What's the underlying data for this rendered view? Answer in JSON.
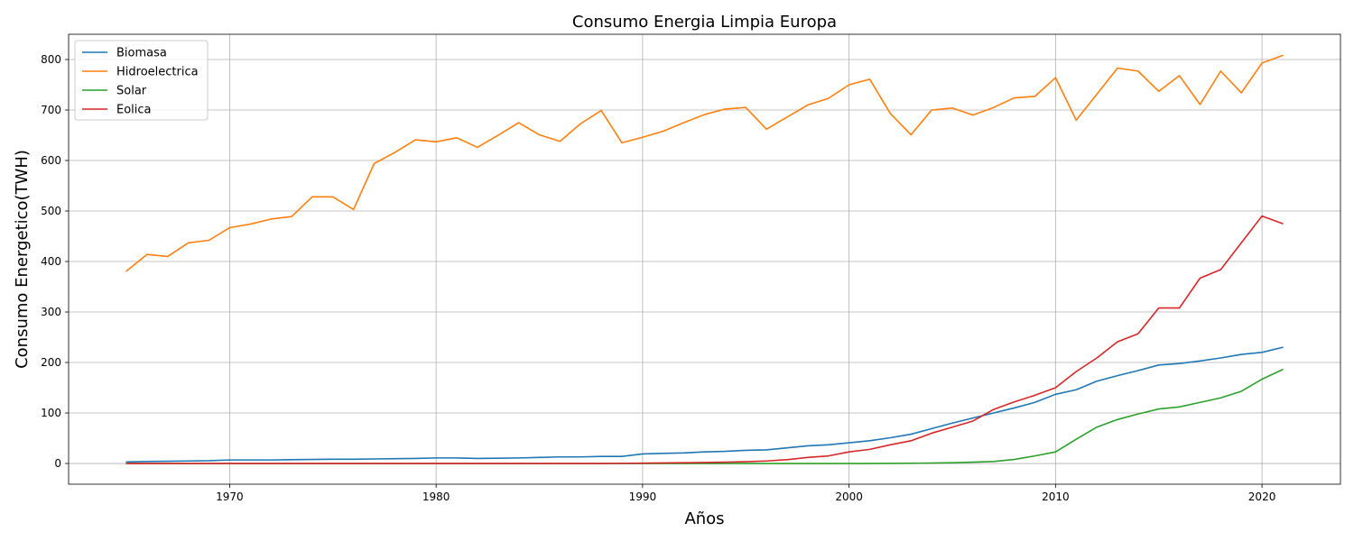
{
  "chart_data": {
    "type": "line",
    "title": "Consumo  Energia Limpia Europa",
    "xlabel": "Años",
    "ylabel": "Consumo Energetico(TWH)",
    "xlim": [
      1962.2,
      2023.8
    ],
    "ylim": [
      -41,
      850
    ],
    "xticks": [
      1970,
      1980,
      1990,
      2000,
      2010,
      2020
    ],
    "yticks": [
      0,
      100,
      200,
      300,
      400,
      500,
      600,
      700,
      800
    ],
    "grid": true,
    "legend_position": "top-left",
    "x": [
      1965,
      1966,
      1967,
      1968,
      1969,
      1970,
      1971,
      1972,
      1973,
      1974,
      1975,
      1976,
      1977,
      1978,
      1979,
      1980,
      1981,
      1982,
      1983,
      1984,
      1985,
      1986,
      1987,
      1988,
      1989,
      1990,
      1991,
      1992,
      1993,
      1994,
      1995,
      1996,
      1997,
      1998,
      1999,
      2000,
      2001,
      2002,
      2003,
      2004,
      2005,
      2006,
      2007,
      2008,
      2009,
      2010,
      2011,
      2012,
      2013,
      2014,
      2015,
      2016,
      2017,
      2018,
      2019,
      2020,
      2021
    ],
    "series": [
      {
        "name": "Biomasa",
        "color": "#1f77b4",
        "values": [
          3,
          4,
          4.5,
          5,
          5.5,
          7,
          7,
          7,
          7.5,
          8,
          8.5,
          8.5,
          9,
          9.5,
          10,
          11,
          11,
          10,
          10.5,
          11,
          12,
          13,
          13,
          14,
          14,
          19,
          20,
          21,
          23,
          24,
          26,
          27,
          31,
          35,
          37,
          41,
          45,
          51,
          58,
          69,
          80,
          90,
          100,
          110,
          121,
          137,
          146,
          163,
          174,
          184,
          195,
          198,
          203,
          209,
          216,
          220,
          230
        ]
      },
      {
        "name": "Hidroelectrica",
        "color": "#ff7f0e",
        "values": [
          381,
          414,
          410,
          437,
          442,
          467,
          474,
          484,
          489,
          528,
          528,
          503,
          594,
          616,
          641,
          637,
          645,
          626,
          650,
          675,
          651,
          638,
          673,
          699,
          635,
          646,
          658,
          675,
          691,
          702,
          705,
          662,
          686,
          710,
          723,
          750,
          761,
          693,
          651,
          700,
          704,
          690,
          705,
          724,
          727,
          764,
          680,
          731,
          783,
          777,
          737,
          768,
          711,
          777,
          734,
          793,
          808
        ]
      },
      {
        "name": "Solar",
        "color": "#2ca02c",
        "values": [
          0,
          0,
          0,
          0,
          0,
          0,
          0,
          0,
          0,
          0,
          0,
          0,
          0,
          0,
          0,
          0,
          0,
          0,
          0,
          0,
          0,
          0,
          0,
          0,
          0,
          0,
          0,
          0,
          0,
          0,
          0,
          0,
          0,
          0,
          0,
          0,
          0,
          0.2,
          0.4,
          0.8,
          1.5,
          2.6,
          4,
          8,
          15,
          23,
          48,
          72,
          87,
          98,
          108,
          112,
          121,
          130,
          143,
          167,
          186
        ]
      },
      {
        "name": "Eolica",
        "color": "#d62728",
        "values": [
          0,
          0,
          0,
          0,
          0,
          0,
          0,
          0,
          0,
          0,
          0,
          0,
          0,
          0,
          0,
          0,
          0,
          0,
          0,
          0,
          0,
          0,
          0,
          0,
          0.3,
          0.6,
          1,
          1.5,
          2,
          2.7,
          3.5,
          5,
          7.5,
          12,
          15,
          23,
          28,
          37,
          45,
          60,
          72,
          84,
          107,
          122,
          135,
          150,
          182,
          209,
          241,
          257,
          308,
          308,
          367,
          384,
          437,
          490,
          475
        ]
      }
    ]
  }
}
